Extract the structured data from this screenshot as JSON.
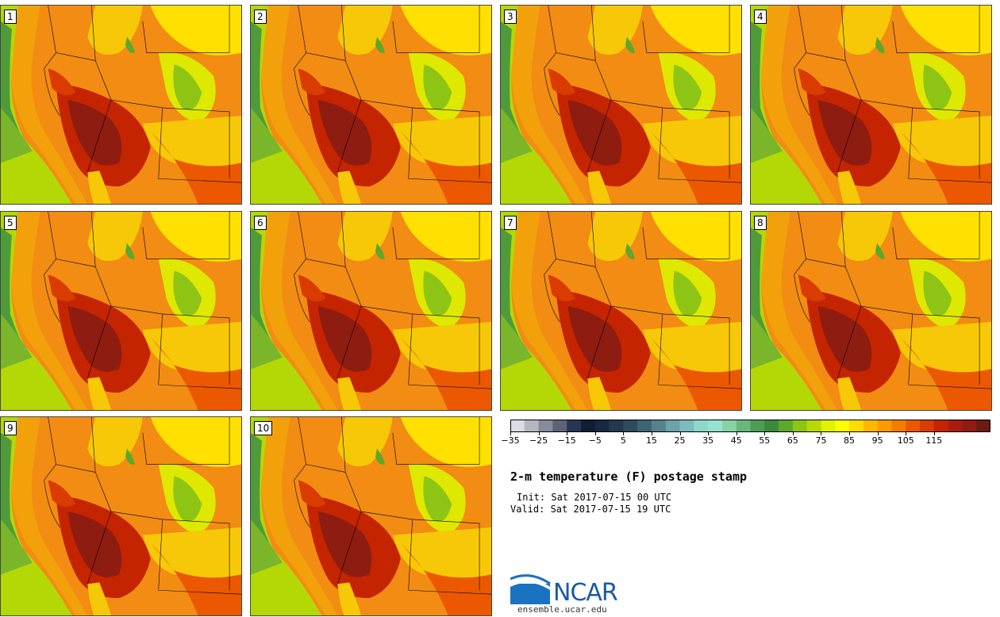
{
  "panels": [
    {
      "label": "1"
    },
    {
      "label": "2"
    },
    {
      "label": "3"
    },
    {
      "label": "4"
    },
    {
      "label": "5"
    },
    {
      "label": "6"
    },
    {
      "label": "7"
    },
    {
      "label": "8"
    },
    {
      "label": "9"
    },
    {
      "label": "10"
    }
  ],
  "colorbar": {
    "colors": [
      "#dcdde2",
      "#b4b6c0",
      "#868a9b",
      "#5e6378",
      "#283553",
      "#111c36",
      "#152940",
      "#22394f",
      "#2d4c5c",
      "#3e6473",
      "#55828d",
      "#6ca2a8",
      "#7dbcbd",
      "#8fd7cd",
      "#98e2d2",
      "#87d3a6",
      "#6ab77e",
      "#4f9b55",
      "#3b8a3b",
      "#5aa82c",
      "#8ec515",
      "#b8d906",
      "#dff200",
      "#ffff00",
      "#ffdd00",
      "#ffb800",
      "#fc9a00",
      "#f57c00",
      "#ec5800",
      "#d93b00",
      "#c42500",
      "#a81d10",
      "#8f1c10",
      "#6c1b10"
    ],
    "tick_labels": [
      "−35",
      "−25",
      "−15",
      "−5",
      "5",
      "15",
      "25",
      "35",
      "45",
      "55",
      "65",
      "75",
      "85",
      "95",
      "105",
      "115"
    ]
  },
  "header": {
    "title": "2-m temperature (F) postage stamp",
    "init": "Init: Sat 2017-07-15 00 UTC",
    "valid": "Valid: Sat 2017-07-15 19 UTC"
  },
  "logo": {
    "name": "NCAR",
    "site": "ensemble.ucar.edu"
  }
}
